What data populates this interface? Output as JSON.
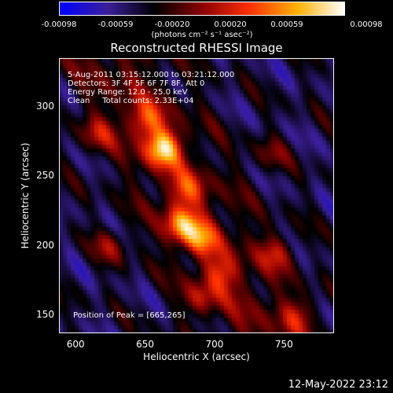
{
  "colorbar": {
    "tick_labels": [
      "-0.00098",
      "-0.00059",
      "-0.00020",
      "0.00020",
      "0.00059",
      "0.00098"
    ],
    "tick_values": [
      -0.00098,
      -0.00059,
      -0.0002,
      0.0002,
      0.00059,
      0.00098
    ],
    "label": "(photons cm⁻² s⁻¹ asec⁻²)",
    "range": [
      -0.00098,
      0.00098
    ],
    "colors": [
      "#0000ff",
      "#3b1f9a",
      "#000000",
      "#8a0000",
      "#ff3000",
      "#ffb000",
      "#ffffff"
    ]
  },
  "info": {
    "line1": "5-Aug-2011 03:15:12.000 to 03:21:12.000",
    "line2": "Detectors: 3F 4F 5F 6F 7F 8F, Att 0",
    "line3": "Energy Range: 12.0 - 25.0 keV",
    "line4": "Clean     Total counts: 2.33E+04",
    "peak": "Position of Peak = [665,265]"
  },
  "footer": {
    "date": "12-May-2022 23:12"
  },
  "chart_data": {
    "type": "heatmap",
    "title": "Reconstructed RHESSI Image",
    "xlabel": "Heliocentric X (arcsec)",
    "ylabel": "Heliocentric Y (arcsec)",
    "xlim": [
      588,
      786
    ],
    "ylim": [
      137,
      335
    ],
    "x_ticks": [
      600,
      650,
      700,
      750
    ],
    "y_ticks": [
      150,
      200,
      250,
      300
    ],
    "peak_position": [
      665,
      265
    ],
    "value_range": [
      -0.00098,
      0.00098
    ],
    "sources": [
      {
        "x": 663,
        "y": 270,
        "value": 0.00098
      },
      {
        "x": 676,
        "y": 215,
        "value": 0.0008
      },
      {
        "x": 690,
        "y": 205,
        "value": 0.0006
      },
      {
        "x": 705,
        "y": 180,
        "value": 0.00045
      },
      {
        "x": 650,
        "y": 290,
        "value": 0.00055
      },
      {
        "x": 745,
        "y": 195,
        "value": 0.00045
      },
      {
        "x": 760,
        "y": 150,
        "value": 0.0004
      },
      {
        "x": 690,
        "y": 162,
        "value": 0.0004
      },
      {
        "x": 625,
        "y": 200,
        "value": 0.0004
      },
      {
        "x": 615,
        "y": 280,
        "value": 0.0004
      },
      {
        "x": 740,
        "y": 265,
        "value": 0.0003
      },
      {
        "x": 680,
        "y": 240,
        "value": 0.0005
      }
    ]
  }
}
